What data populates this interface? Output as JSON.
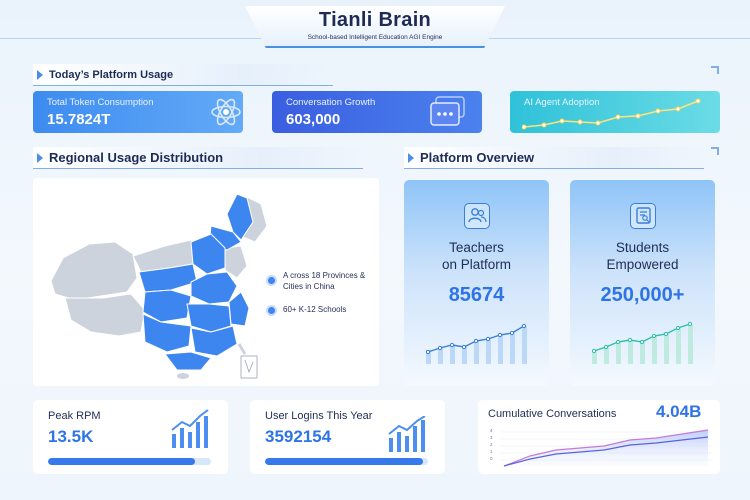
{
  "header": {
    "title": "Tianli Brain",
    "subtitle": "School-based Intelligent Education AGI Engine"
  },
  "sections": {
    "usage": "Today’s Platform Usage",
    "regional": "Regional Usage Distribution",
    "overview": "Platform Overview"
  },
  "kpis": [
    {
      "label": "Total Token Consumption",
      "value": "15.7824T",
      "icon": "atom-icon",
      "color": "#3a83ee"
    },
    {
      "label": "Conversation Growth",
      "value": "603,000",
      "icon": "chat-window-icon",
      "color": "#3d63e0"
    },
    {
      "label": "AI Agent Adoption",
      "icon": "trend-line-icon",
      "color": "#34c6d6"
    }
  ],
  "map": {
    "legend": [
      {
        "text": "A cross 18 Provinces & Cities in China"
      },
      {
        "text": "60+  K-12 Schools"
      }
    ],
    "highlight_color": "#3d86f0",
    "base_color": "#cdd3dc"
  },
  "overview": [
    {
      "title_line1": "Teachers",
      "title_line2": "on Platform",
      "value": "85674",
      "icon": "users-icon"
    },
    {
      "title_line1": "Students",
      "title_line2": "Empowered",
      "value": "250,000+",
      "icon": "student-card-icon"
    }
  ],
  "bottom": {
    "peak_rpm": {
      "label": "Peak RPM",
      "value": "13.5K",
      "progress": 0.9
    },
    "logins": {
      "label": "User Logins This Year",
      "value": "3592154",
      "progress": 0.97
    },
    "cumulative": {
      "label": "Cumulative Conversations",
      "value": "4.04B",
      "y_ticks": [
        "4",
        "3",
        "2",
        "1",
        "0"
      ]
    }
  }
}
